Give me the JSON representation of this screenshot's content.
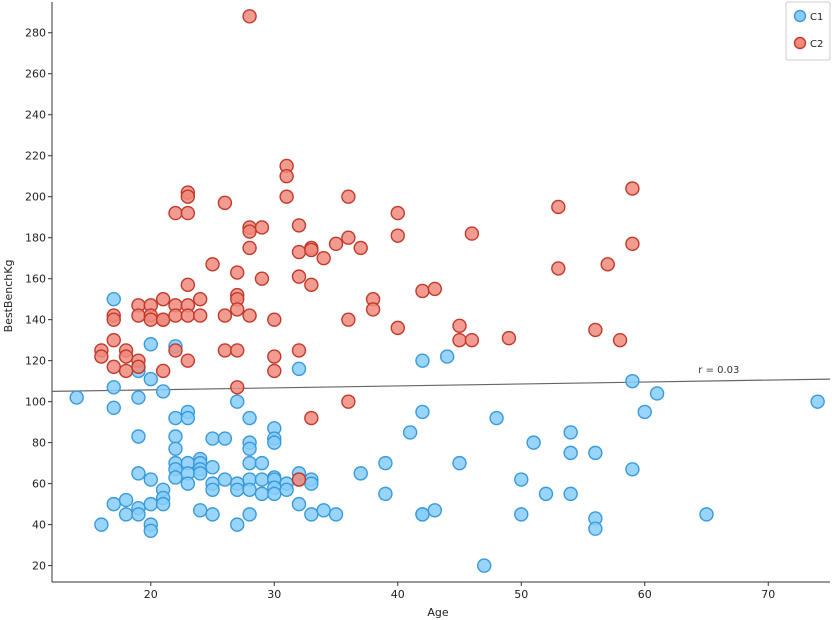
{
  "chart_data": {
    "type": "scatter",
    "xlabel": "Age",
    "ylabel": "BestBenchKg",
    "xlim": [
      12,
      75
    ],
    "ylim": [
      12,
      295
    ],
    "x_ticks": [
      20,
      30,
      40,
      50,
      60,
      70
    ],
    "y_ticks": [
      20,
      40,
      60,
      80,
      100,
      120,
      140,
      160,
      180,
      200,
      220,
      240,
      260,
      280
    ],
    "grid": false,
    "legend_position": "top-right",
    "annotation": {
      "text": "r = 0.03",
      "x": 66,
      "y": 114
    },
    "regression_line": {
      "x": [
        12,
        75
      ],
      "y": [
        105,
        111
      ]
    },
    "series": [
      {
        "name": "C1",
        "color": "#87CEFA",
        "stroke": "#3a9ad9",
        "points": [
          [
            14,
            102
          ],
          [
            16,
            40
          ],
          [
            17,
            150
          ],
          [
            17,
            107
          ],
          [
            17,
            97
          ],
          [
            17,
            50
          ],
          [
            18,
            52
          ],
          [
            18,
            45
          ],
          [
            19,
            117
          ],
          [
            19,
            115
          ],
          [
            19,
            102
          ],
          [
            19,
            83
          ],
          [
            19,
            65
          ],
          [
            19,
            48
          ],
          [
            19,
            45
          ],
          [
            20,
            128
          ],
          [
            20,
            111
          ],
          [
            20,
            62
          ],
          [
            20,
            50
          ],
          [
            20,
            40
          ],
          [
            20,
            37
          ],
          [
            21,
            105
          ],
          [
            21,
            57
          ],
          [
            21,
            53
          ],
          [
            21,
            50
          ],
          [
            22,
            127
          ],
          [
            22,
            92
          ],
          [
            22,
            83
          ],
          [
            22,
            77
          ],
          [
            22,
            70
          ],
          [
            22,
            67
          ],
          [
            22,
            63
          ],
          [
            23,
            95
          ],
          [
            23,
            92
          ],
          [
            23,
            70
          ],
          [
            23,
            65
          ],
          [
            23,
            60
          ],
          [
            24,
            72
          ],
          [
            24,
            70
          ],
          [
            24,
            67
          ],
          [
            24,
            65
          ],
          [
            24,
            47
          ],
          [
            25,
            82
          ],
          [
            25,
            68
          ],
          [
            25,
            60
          ],
          [
            25,
            57
          ],
          [
            25,
            45
          ],
          [
            26,
            82
          ],
          [
            26,
            62
          ],
          [
            27,
            100
          ],
          [
            27,
            60
          ],
          [
            27,
            57
          ],
          [
            27,
            40
          ],
          [
            28,
            92
          ],
          [
            28,
            80
          ],
          [
            28,
            77
          ],
          [
            28,
            70
          ],
          [
            28,
            62
          ],
          [
            28,
            57
          ],
          [
            28,
            45
          ],
          [
            29,
            70
          ],
          [
            29,
            62
          ],
          [
            29,
            55
          ],
          [
            30,
            87
          ],
          [
            30,
            82
          ],
          [
            30,
            80
          ],
          [
            30,
            63
          ],
          [
            30,
            62
          ],
          [
            30,
            58
          ],
          [
            30,
            55
          ],
          [
            31,
            60
          ],
          [
            31,
            57
          ],
          [
            32,
            116
          ],
          [
            32,
            65
          ],
          [
            32,
            62
          ],
          [
            32,
            50
          ],
          [
            33,
            62
          ],
          [
            33,
            60
          ],
          [
            33,
            45
          ],
          [
            34,
            47
          ],
          [
            35,
            45
          ],
          [
            37,
            65
          ],
          [
            39,
            70
          ],
          [
            39,
            55
          ],
          [
            41,
            85
          ],
          [
            42,
            120
          ],
          [
            42,
            95
          ],
          [
            42,
            45
          ],
          [
            42,
            45
          ],
          [
            43,
            47
          ],
          [
            44,
            122
          ],
          [
            45,
            70
          ],
          [
            47,
            20
          ],
          [
            48,
            92
          ],
          [
            50,
            62
          ],
          [
            50,
            45
          ],
          [
            51,
            80
          ],
          [
            52,
            55
          ],
          [
            54,
            85
          ],
          [
            54,
            75
          ],
          [
            54,
            55
          ],
          [
            56,
            75
          ],
          [
            56,
            43
          ],
          [
            56,
            38
          ],
          [
            59,
            110
          ],
          [
            59,
            67
          ],
          [
            60,
            95
          ],
          [
            61,
            104
          ],
          [
            65,
            45
          ],
          [
            74,
            100
          ]
        ]
      },
      {
        "name": "C2",
        "color": "#F08A7C",
        "stroke": "#c0392b",
        "points": [
          [
            16,
            125
          ],
          [
            16,
            122
          ],
          [
            17,
            142
          ],
          [
            17,
            140
          ],
          [
            17,
            130
          ],
          [
            17,
            117
          ],
          [
            18,
            125
          ],
          [
            18,
            122
          ],
          [
            18,
            115
          ],
          [
            19,
            147
          ],
          [
            19,
            142
          ],
          [
            19,
            120
          ],
          [
            19,
            117
          ],
          [
            20,
            147
          ],
          [
            20,
            142
          ],
          [
            20,
            140
          ],
          [
            21,
            150
          ],
          [
            21,
            140
          ],
          [
            21,
            140
          ],
          [
            21,
            115
          ],
          [
            22,
            192
          ],
          [
            22,
            147
          ],
          [
            22,
            142
          ],
          [
            22,
            125
          ],
          [
            23,
            202
          ],
          [
            23,
            200
          ],
          [
            23,
            192
          ],
          [
            23,
            157
          ],
          [
            23,
            147
          ],
          [
            23,
            142
          ],
          [
            23,
            120
          ],
          [
            24,
            150
          ],
          [
            24,
            142
          ],
          [
            25,
            167
          ],
          [
            26,
            197
          ],
          [
            26,
            142
          ],
          [
            26,
            125
          ],
          [
            27,
            163
          ],
          [
            27,
            152
          ],
          [
            27,
            150
          ],
          [
            27,
            145
          ],
          [
            27,
            125
          ],
          [
            27,
            107
          ],
          [
            28,
            288
          ],
          [
            28,
            185
          ],
          [
            28,
            183
          ],
          [
            28,
            175
          ],
          [
            28,
            142
          ],
          [
            29,
            185
          ],
          [
            29,
            160
          ],
          [
            30,
            140
          ],
          [
            30,
            122
          ],
          [
            30,
            115
          ],
          [
            31,
            215
          ],
          [
            31,
            210
          ],
          [
            31,
            200
          ],
          [
            32,
            186
          ],
          [
            32,
            173
          ],
          [
            32,
            161
          ],
          [
            32,
            125
          ],
          [
            32,
            62
          ],
          [
            33,
            175
          ],
          [
            33,
            174
          ],
          [
            33,
            157
          ],
          [
            33,
            92
          ],
          [
            34,
            170
          ],
          [
            35,
            177
          ],
          [
            36,
            200
          ],
          [
            36,
            180
          ],
          [
            36,
            140
          ],
          [
            36,
            100
          ],
          [
            37,
            175
          ],
          [
            38,
            150
          ],
          [
            38,
            145
          ],
          [
            40,
            192
          ],
          [
            40,
            181
          ],
          [
            40,
            136
          ],
          [
            42,
            154
          ],
          [
            43,
            155
          ],
          [
            45,
            137
          ],
          [
            45,
            130
          ],
          [
            46,
            182
          ],
          [
            46,
            130
          ],
          [
            49,
            131
          ],
          [
            53,
            195
          ],
          [
            53,
            165
          ],
          [
            56,
            135
          ],
          [
            57,
            167
          ],
          [
            58,
            130
          ],
          [
            59,
            204
          ],
          [
            59,
            177
          ]
        ]
      }
    ]
  }
}
